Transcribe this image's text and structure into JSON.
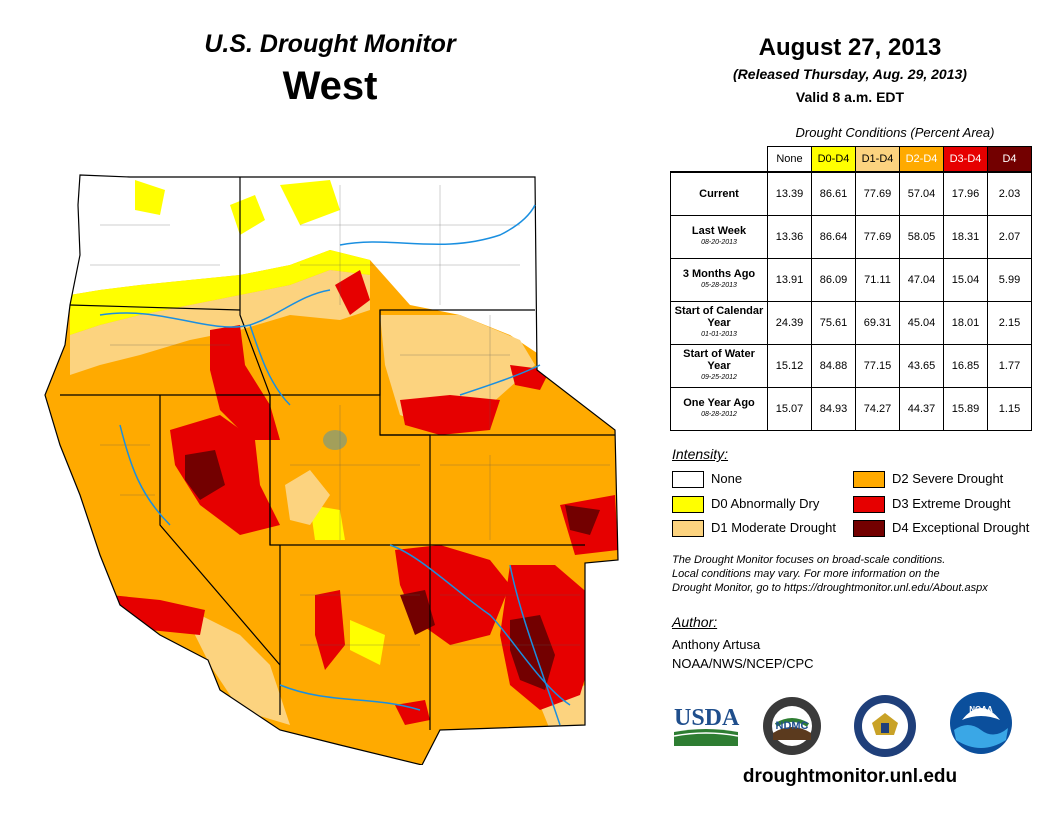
{
  "header": {
    "title": "U.S. Drought Monitor",
    "region": "West",
    "date": "August 27, 2013",
    "released": "(Released Thursday, Aug. 29, 2013)",
    "valid": "Valid 8 a.m. EDT"
  },
  "table": {
    "caption": "Drought Conditions (Percent Area)",
    "columns": [
      {
        "label": "None",
        "color": "#ffffff",
        "text_color": "#000000"
      },
      {
        "label": "D0-D4",
        "color": "#ffff00",
        "text_color": "#000000"
      },
      {
        "label": "D1-D4",
        "color": "#fcd37f",
        "text_color": "#000000"
      },
      {
        "label": "D2-D4",
        "color": "#ffaa00",
        "text_color": "#ffffff"
      },
      {
        "label": "D3-D4",
        "color": "#e60000",
        "text_color": "#ffffff"
      },
      {
        "label": "D4",
        "color": "#730000",
        "text_color": "#ffffff"
      }
    ],
    "rows": [
      {
        "label": "Current",
        "date": "",
        "values": [
          "13.39",
          "86.61",
          "77.69",
          "57.04",
          "17.96",
          "2.03"
        ]
      },
      {
        "label": "Last Week",
        "date": "08-20-2013",
        "values": [
          "13.36",
          "86.64",
          "77.69",
          "58.05",
          "18.31",
          "2.07"
        ]
      },
      {
        "label": "3 Months Ago",
        "date": "05-28-2013",
        "values": [
          "13.91",
          "86.09",
          "71.11",
          "47.04",
          "15.04",
          "5.99"
        ]
      },
      {
        "label": "Start of Calendar Year",
        "date": "01-01-2013",
        "values": [
          "24.39",
          "75.61",
          "69.31",
          "45.04",
          "18.01",
          "2.15"
        ]
      },
      {
        "label": "Start of Water Year",
        "date": "09-25-2012",
        "values": [
          "15.12",
          "84.88",
          "77.15",
          "43.65",
          "16.85",
          "1.77"
        ]
      },
      {
        "label": "One Year Ago",
        "date": "08-28-2012",
        "values": [
          "15.07",
          "84.93",
          "74.27",
          "44.37",
          "15.89",
          "1.15"
        ]
      }
    ]
  },
  "legend": {
    "title": "Intensity:",
    "items": [
      {
        "label": "None",
        "color": "#ffffff"
      },
      {
        "label": "D0 Abnormally Dry",
        "color": "#ffff00"
      },
      {
        "label": "D1 Moderate Drought",
        "color": "#fcd37f"
      },
      {
        "label": "D2 Severe Drought",
        "color": "#ffaa00"
      },
      {
        "label": "D3 Extreme Drought",
        "color": "#e60000"
      },
      {
        "label": "D4 Exceptional Drought",
        "color": "#730000"
      }
    ]
  },
  "note": [
    "The Drought Monitor focuses on broad-scale conditions.",
    "Local conditions may vary. For more information on the",
    "Drought Monitor, go to https://droughtmonitor.unl.edu/About.aspx"
  ],
  "author": {
    "title": "Author:",
    "name": "Anthony Artusa",
    "org": "NOAA/NWS/NCEP/CPC"
  },
  "logos": {
    "usda": "USDA",
    "ndmc": "NDMC",
    "noaa": "NOAA"
  },
  "website": "droughtmonitor.unl.edu",
  "map": {
    "states": [
      "Washington",
      "Oregon",
      "California",
      "Idaho",
      "Nevada",
      "Montana",
      "Wyoming",
      "Utah",
      "Arizona",
      "Colorado",
      "New Mexico"
    ]
  }
}
